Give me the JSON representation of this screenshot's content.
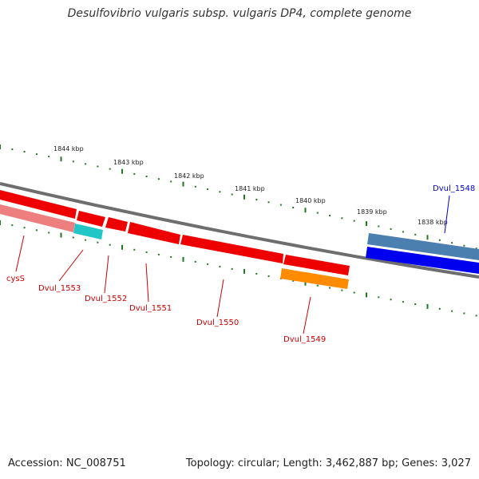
{
  "title": "Desulfovibrio vulgaris subsp. vulgaris DP4, complete genome",
  "footer": {
    "accession": "Accession: NC_008751",
    "stats": "Topology: circular; Length: 3,462,887 bp; Genes: 3,027"
  },
  "colors": {
    "backbone": "#7f7f7f",
    "scale_tick": "#1f7a1f",
    "gene_red": "#ee0000",
    "gene_pink": "#ee7f7f",
    "gene_cyan": "#22c6c6",
    "gene_orange": "#ff8c00",
    "gene_steel": "#4a7fb0",
    "gene_blue": "#0000ee",
    "label_red": "#cc0000",
    "label_blue": "#0000cc"
  },
  "scale_labels": [
    "1844 kbp",
    "1843 kbp",
    "1842 kbp",
    "1841 kbp",
    "1840 kbp",
    "1839 kbp",
    "1838 kbp"
  ],
  "genes": [
    {
      "label": "cysS",
      "color": "gene_red"
    },
    {
      "label": "Dvul_1553",
      "color": "gene_red"
    },
    {
      "label": "Dvul_1552",
      "color": "gene_red"
    },
    {
      "label": "Dvul_1551",
      "color": "gene_red"
    },
    {
      "label": "Dvul_1550",
      "color": "gene_red"
    },
    {
      "label": "Dvul_1549",
      "color": "gene_red"
    },
    {
      "label": "Dvul_1548",
      "color": "gene_blue"
    }
  ]
}
